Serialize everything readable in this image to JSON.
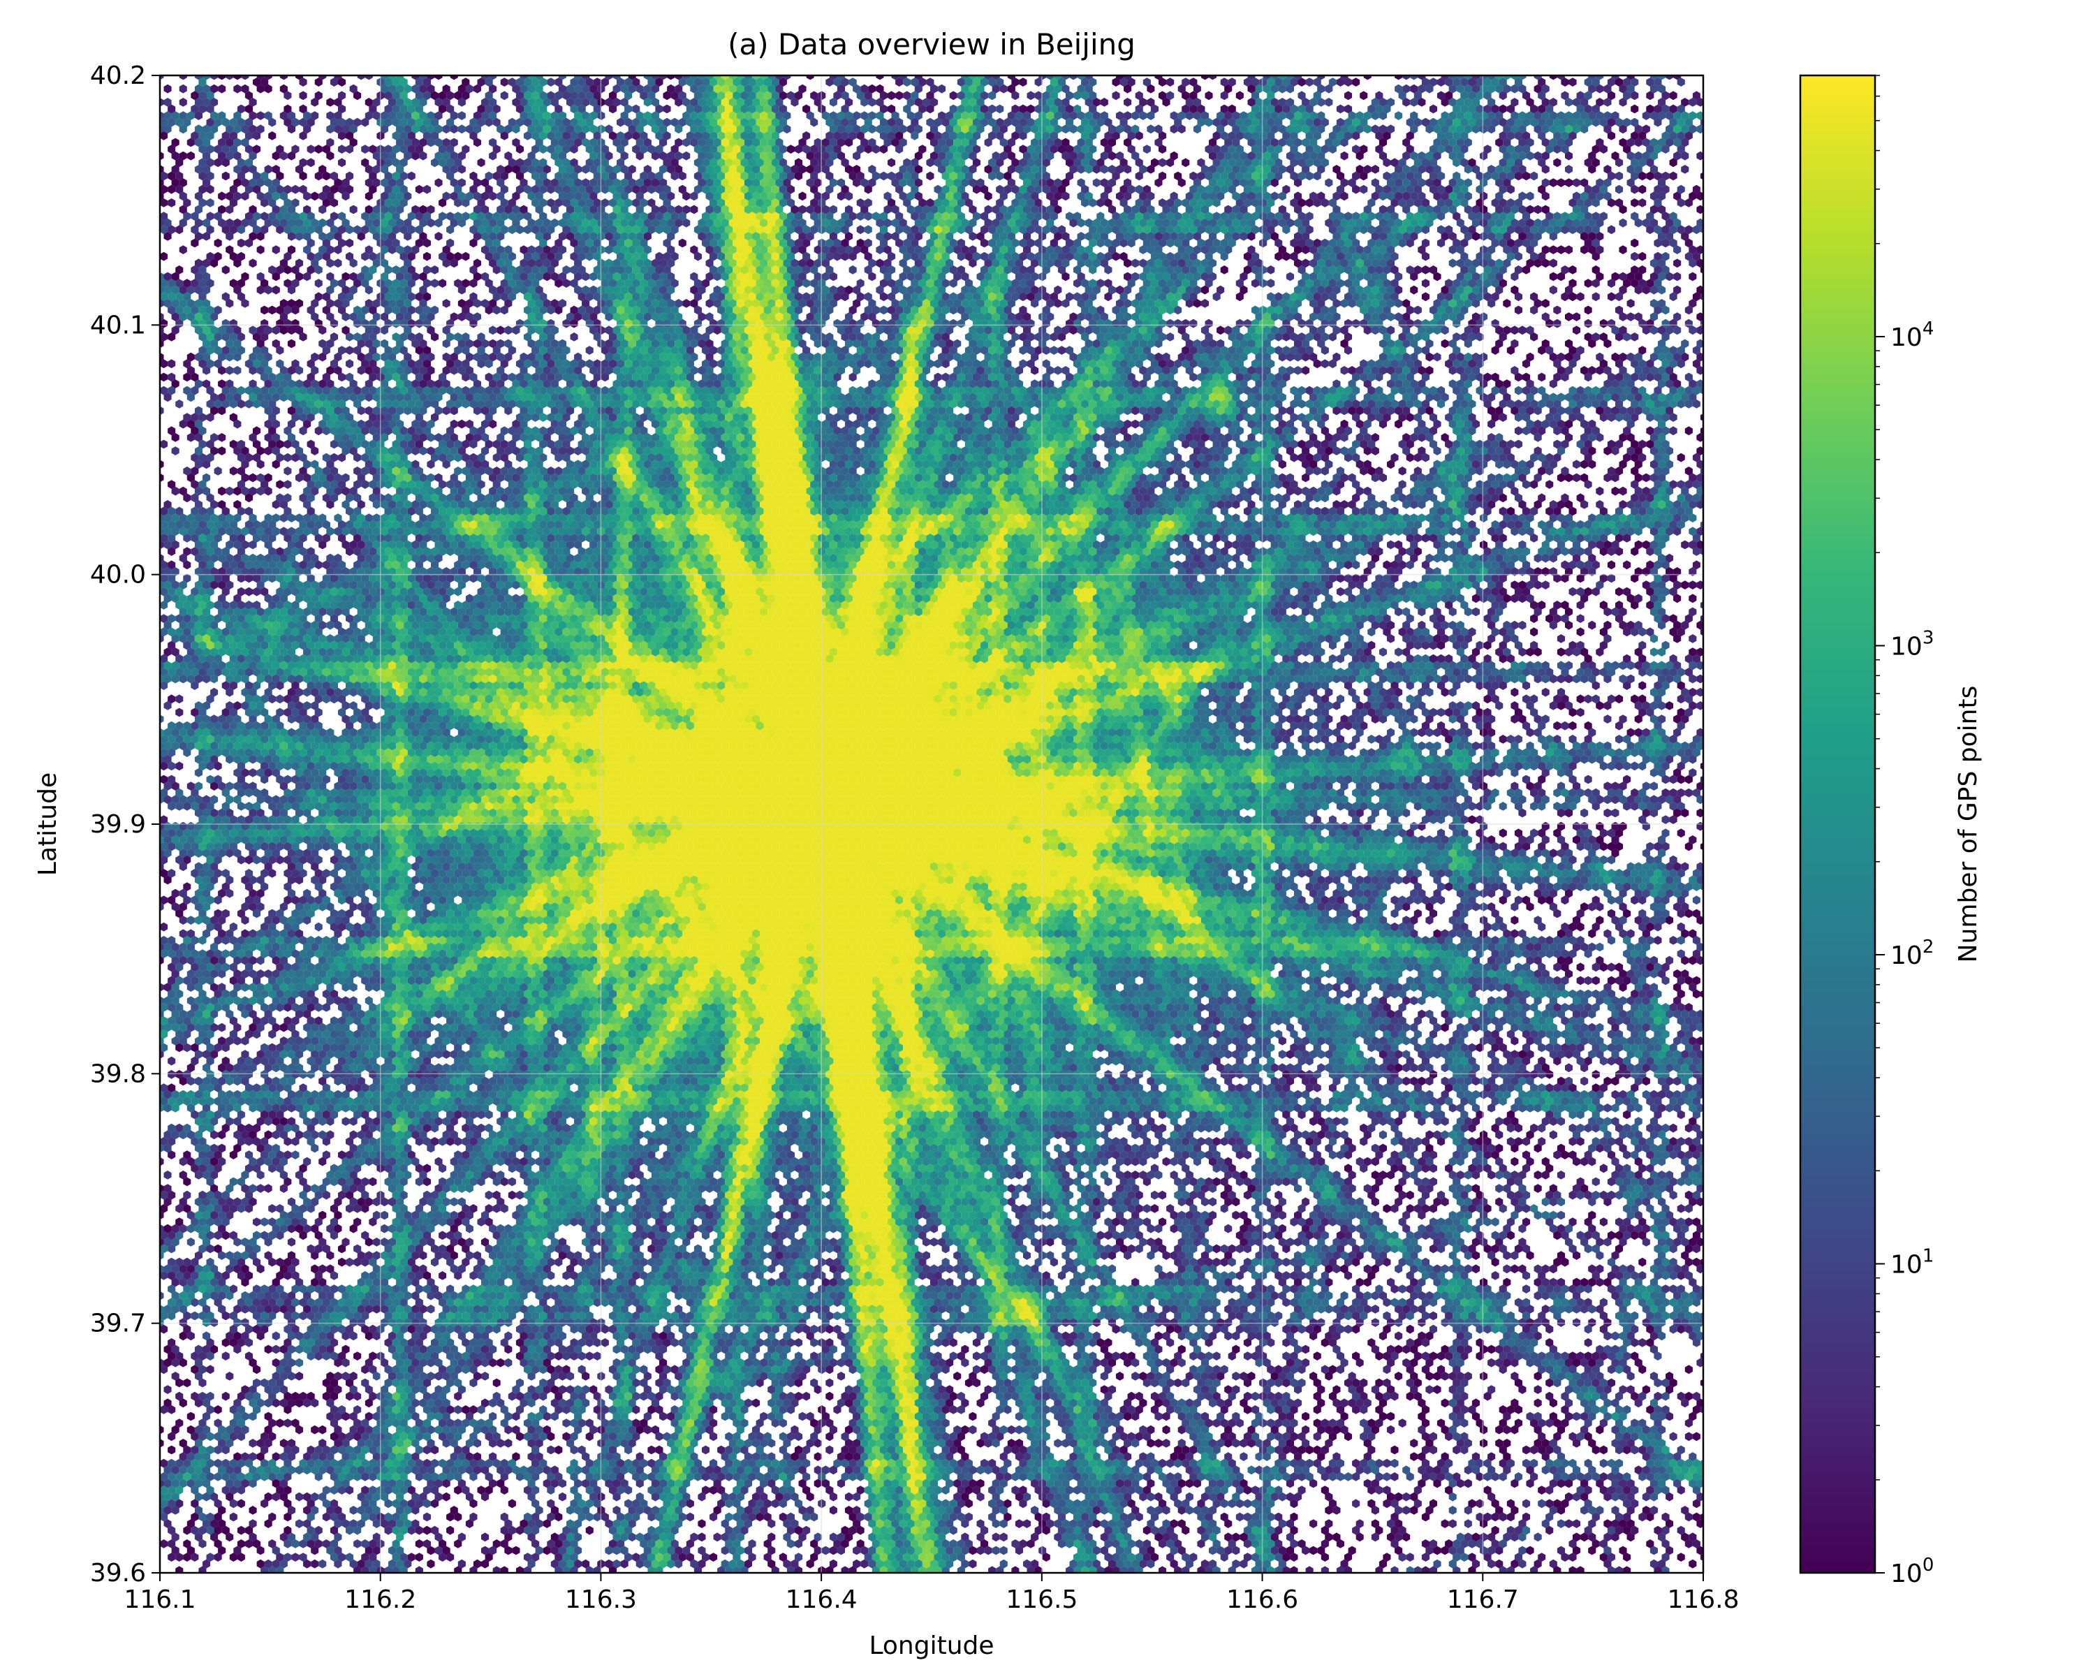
{
  "chart_data": {
    "type": "heatmap",
    "subtype": "hexbin",
    "title": "(a) Data overview in Beijing",
    "xlabel": "Longitude",
    "ylabel": "Latitude",
    "xlim": [
      116.1,
      116.8
    ],
    "ylim": [
      39.6,
      40.2
    ],
    "xticks": [
      "116.1",
      "116.2",
      "116.3",
      "116.4",
      "116.5",
      "116.6",
      "116.7",
      "116.8"
    ],
    "yticks": [
      "39.6",
      "39.7",
      "39.8",
      "39.9",
      "40.0",
      "40.1",
      "40.2"
    ],
    "grid": true,
    "colormap": "viridis",
    "colorscale": "log",
    "colorbar": {
      "label": "Number of GPS points",
      "range": [
        1,
        70000
      ],
      "ticks": [
        {
          "base": "10",
          "exp": "0",
          "value": 1
        },
        {
          "base": "10",
          "exp": "1",
          "value": 10
        },
        {
          "base": "10",
          "exp": "2",
          "value": 100
        },
        {
          "base": "10",
          "exp": "3",
          "value": 1000
        },
        {
          "base": "10",
          "exp": "4",
          "value": 10000
        }
      ]
    },
    "hotspots": [
      {
        "lon": 116.4,
        "lat": 39.91,
        "count": 12000
      },
      {
        "lon": 116.35,
        "lat": 39.94,
        "count": 9000
      },
      {
        "lon": 116.45,
        "lat": 39.89,
        "count": 8000
      },
      {
        "lon": 116.33,
        "lat": 40.0,
        "count": 3000
      },
      {
        "lon": 116.58,
        "lat": 40.07,
        "count": 20000
      },
      {
        "lon": 116.65,
        "lat": 40.11,
        "count": 900
      },
      {
        "lon": 116.34,
        "lat": 39.72,
        "count": 600
      },
      {
        "lon": 116.6,
        "lat": 39.91,
        "count": 400
      }
    ],
    "colors": {
      "viridis": [
        "#440154",
        "#482878",
        "#3e4989",
        "#31688e",
        "#26828e",
        "#1f9e89",
        "#35b779",
        "#6ece58",
        "#b5de2b",
        "#fde725"
      ],
      "grid": "#d9d9d9",
      "axis": "#000000"
    }
  }
}
